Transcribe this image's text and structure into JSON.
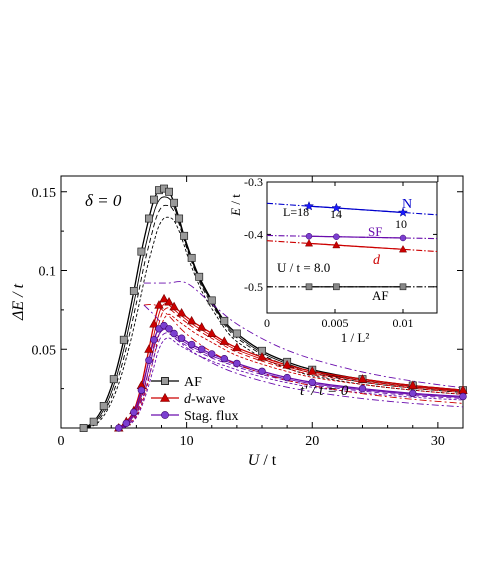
{
  "chart_data": [
    {
      "type": "line",
      "panel": "main",
      "xlabel_italic": "U",
      "xlabel_rest": " / t",
      "ylabel": "ΔE / t",
      "xlim": [
        0,
        32
      ],
      "ylim": [
        0,
        0.16
      ],
      "x_ticks": [
        0,
        10,
        20,
        30
      ],
      "y_ticks": [
        0.05,
        0.1,
        0.15
      ],
      "x_tick_labels": [
        "0",
        "10",
        "20",
        "30"
      ],
      "y_tick_labels": [
        "0.05",
        "0.1",
        "0.15"
      ],
      "annotation_doping": "δ = 0",
      "annotation_tprime": "t′ / t = 0",
      "legend_position": "bottom-center",
      "series": [
        {
          "name": "AF",
          "color": "#000000",
          "marker": "square",
          "marker_fill": "#9a9a9a",
          "x": [
            1.8,
            2.6,
            3.4,
            4.2,
            5.0,
            5.8,
            6.4,
            7.0,
            7.4,
            7.8,
            8.2,
            8.6,
            9.0,
            9.4,
            9.8,
            10.4,
            11.0,
            12.0,
            13.0,
            14.0,
            16.0,
            18.0,
            20.0,
            24.0,
            28.0,
            32.0
          ],
          "y": [
            0.0,
            0.004,
            0.014,
            0.031,
            0.056,
            0.087,
            0.112,
            0.133,
            0.145,
            0.151,
            0.152,
            0.15,
            0.143,
            0.133,
            0.122,
            0.108,
            0.096,
            0.081,
            0.068,
            0.06,
            0.049,
            0.042,
            0.037,
            0.031,
            0.027,
            0.024
          ]
        },
        {
          "name": "d-wave",
          "name_italic": "d",
          "name_rest": "-wave",
          "color": "#cc0000",
          "marker": "triangle",
          "marker_fill": "#cc0000",
          "x": [
            4.6,
            5.2,
            5.8,
            6.4,
            7.0,
            7.4,
            7.8,
            8.2,
            8.6,
            9.0,
            9.6,
            10.4,
            11.2,
            12.0,
            13.0,
            14.0,
            16.0,
            18.0,
            20.0,
            24.0,
            28.0,
            32.0
          ],
          "y": [
            0.0,
            0.004,
            0.011,
            0.027,
            0.05,
            0.066,
            0.078,
            0.082,
            0.08,
            0.077,
            0.073,
            0.068,
            0.064,
            0.06,
            0.055,
            0.051,
            0.045,
            0.04,
            0.036,
            0.031,
            0.027,
            0.024
          ]
        },
        {
          "name": "Stag. flux",
          "color": "#6a0dad",
          "marker": "circle",
          "marker_fill": "#7b3fd0",
          "x": [
            4.6,
            5.2,
            5.8,
            6.4,
            7.0,
            7.4,
            7.8,
            8.2,
            8.6,
            9.0,
            9.6,
            10.4,
            11.2,
            12.0,
            13.0,
            14.0,
            16.0,
            18.0,
            20.0,
            24.0,
            28.0,
            32.0
          ],
          "y": [
            0.0,
            0.003,
            0.01,
            0.024,
            0.043,
            0.056,
            0.063,
            0.065,
            0.063,
            0.06,
            0.057,
            0.053,
            0.05,
            0.047,
            0.044,
            0.041,
            0.036,
            0.032,
            0.029,
            0.025,
            0.022,
            0.02
          ]
        }
      ]
    },
    {
      "type": "scatter",
      "panel": "inset",
      "xlabel": "1 / L²",
      "ylabel_italic": "E",
      "ylabel_rest": " / t",
      "xlim": [
        0,
        0.0125
      ],
      "ylim": [
        -0.55,
        -0.3
      ],
      "x_ticks": [
        0,
        0.005,
        0.01
      ],
      "x_tick_labels": [
        "0",
        "0.005",
        "0.01"
      ],
      "y_ticks": [
        -0.3,
        -0.4,
        -0.5
      ],
      "y_tick_labels": [
        "-0.3",
        "-0.4",
        "-0.5"
      ],
      "label_u": "U / t = 8.0",
      "size_labels": [
        "L=18",
        "14",
        "10"
      ],
      "series": [
        {
          "name": "N",
          "color": "#0000cc",
          "x": [
            0.00309,
            0.0051,
            0.01
          ],
          "y": [
            -0.3461,
            -0.3496,
            -0.3582
          ]
        },
        {
          "name": "SF",
          "color": "#6a0dad",
          "x": [
            0.00309,
            0.0051,
            0.01
          ],
          "y": [
            -0.4035,
            -0.4045,
            -0.4068
          ]
        },
        {
          "name": "d",
          "color": "#cc0000",
          "x": [
            0.00309,
            0.0051,
            0.01
          ],
          "y": [
            -0.4171,
            -0.4205,
            -0.4285
          ]
        },
        {
          "name": "AF",
          "color": "#000000",
          "x": [
            0.00309,
            0.0051,
            0.01
          ],
          "y": [
            -0.5,
            -0.5,
            -0.5
          ]
        }
      ]
    }
  ]
}
